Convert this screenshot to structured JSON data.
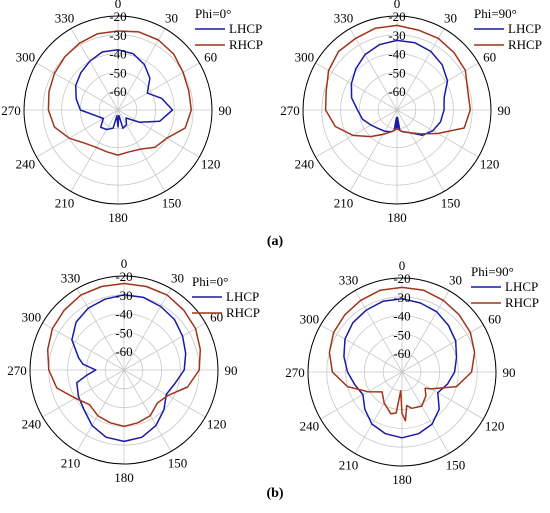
{
  "figure": {
    "label_a": "(a)",
    "label_b": "(b)"
  },
  "colors": {
    "lhcp": "#1a1aa6",
    "rhcp": "#a0341c",
    "grid": "#c8c8c8",
    "axis": "#000000"
  },
  "chart_data": [
    {
      "type": "polar-line",
      "legend_title": "Phi=0°",
      "r_ticks": [
        -20,
        -30,
        -40,
        -50,
        -60
      ],
      "r_range": [
        -70,
        -20
      ],
      "angle_ticks": [
        0,
        30,
        60,
        90,
        120,
        150,
        180,
        210,
        240,
        270,
        300,
        330
      ],
      "legend_position": "top-right",
      "series": [
        {
          "name": "LHCP",
          "angles": [
            0,
            15,
            30,
            45,
            60,
            75,
            90,
            105,
            120,
            135,
            150,
            165,
            170,
            175,
            180,
            185,
            190,
            195,
            210,
            225,
            240,
            255,
            270,
            285,
            300,
            315,
            330,
            345,
            360
          ],
          "values": [
            -38,
            -39,
            -42,
            -46,
            -52,
            -46,
            -41,
            -47,
            -57,
            -64,
            -61,
            -60,
            -67,
            -66,
            -61,
            -65,
            -67,
            -60,
            -58,
            -57,
            -61,
            -58,
            -50,
            -47,
            -44,
            -42,
            -40,
            -38,
            -38
          ]
        },
        {
          "name": "RHCP",
          "angles": [
            0,
            15,
            30,
            45,
            60,
            75,
            90,
            105,
            120,
            135,
            150,
            165,
            180,
            195,
            210,
            225,
            240,
            255,
            270,
            285,
            300,
            315,
            330,
            345,
            360
          ],
          "values": [
            -28,
            -27,
            -27,
            -28,
            -30,
            -31,
            -31,
            -33,
            -40,
            -42,
            -46,
            -47,
            -46,
            -47,
            -47,
            -45,
            -40,
            -35,
            -33,
            -32,
            -31,
            -30,
            -29,
            -28,
            -28
          ]
        }
      ]
    },
    {
      "type": "polar-line",
      "legend_title": "Phi=90°",
      "r_ticks": [
        -20,
        -30,
        -40,
        -50,
        -60
      ],
      "r_range": [
        -70,
        -20
      ],
      "angle_ticks": [
        0,
        30,
        60,
        90,
        120,
        150,
        180,
        210,
        240,
        270,
        300,
        330
      ],
      "legend_position": "top-right",
      "series": [
        {
          "name": "LHCP",
          "angles": [
            0,
            15,
            30,
            45,
            60,
            75,
            90,
            105,
            120,
            135,
            150,
            165,
            172,
            176,
            178,
            180,
            182,
            184,
            188,
            195,
            210,
            225,
            240,
            255,
            270,
            285,
            300,
            315,
            330,
            345,
            360
          ],
          "values": [
            -33,
            -33,
            -34,
            -36,
            -39,
            -44,
            -45,
            -46,
            -48,
            -51,
            -56,
            -58,
            -59,
            -66,
            -60,
            -60,
            -60,
            -66,
            -59,
            -58,
            -57,
            -56,
            -54,
            -51,
            -49,
            -45,
            -42,
            -39,
            -36,
            -34,
            -33
          ]
        },
        {
          "name": "RHCP",
          "angles": [
            0,
            15,
            30,
            45,
            60,
            75,
            90,
            105,
            120,
            135,
            150,
            165,
            180,
            195,
            210,
            225,
            240,
            255,
            270,
            285,
            300,
            315,
            330,
            345,
            360
          ],
          "values": [
            -25,
            -26,
            -26,
            -27,
            -28,
            -31,
            -31,
            -33,
            -45,
            -52,
            -56,
            -58,
            -60,
            -58,
            -55,
            -50,
            -43,
            -36,
            -32,
            -31,
            -28,
            -26,
            -26,
            -25,
            -25
          ]
        }
      ]
    },
    {
      "type": "polar-line",
      "legend_title": "Phi=0°",
      "r_ticks": [
        -20,
        -30,
        -40,
        -50,
        -60
      ],
      "r_range": [
        -70,
        -20
      ],
      "angle_ticks": [
        0,
        30,
        60,
        90,
        120,
        150,
        180,
        210,
        240,
        270,
        300,
        330
      ],
      "legend_position": "top-right",
      "series": [
        {
          "name": "LHCP",
          "angles": [
            0,
            15,
            30,
            45,
            60,
            75,
            90,
            105,
            120,
            135,
            150,
            165,
            180,
            195,
            210,
            225,
            240,
            255,
            262,
            270,
            278,
            285,
            300,
            315,
            330,
            345,
            360
          ],
          "values": [
            -30,
            -30,
            -31,
            -32,
            -34,
            -36,
            -38,
            -42,
            -44,
            -40,
            -36,
            -33,
            -32,
            -33,
            -36,
            -40,
            -42,
            -44,
            -50,
            -55,
            -48,
            -45,
            -38,
            -34,
            -32,
            -31,
            -30
          ]
        },
        {
          "name": "RHCP",
          "angles": [
            0,
            15,
            30,
            45,
            60,
            75,
            90,
            105,
            120,
            135,
            150,
            165,
            180,
            195,
            210,
            225,
            240,
            255,
            270,
            285,
            300,
            315,
            330,
            345,
            360
          ],
          "values": [
            -24,
            -24,
            -24,
            -25,
            -26,
            -28,
            -30,
            -35,
            -43,
            -45,
            -42,
            -41,
            -40,
            -41,
            -42,
            -44,
            -40,
            -33,
            -30,
            -28,
            -26,
            -25,
            -24,
            -24,
            -24
          ]
        }
      ]
    },
    {
      "type": "polar-line",
      "legend_title": "Phi=90°",
      "r_ticks": [
        -20,
        -30,
        -40,
        -50,
        -60
      ],
      "r_range": [
        -70,
        -20
      ],
      "angle_ticks": [
        0,
        30,
        60,
        90,
        120,
        150,
        180,
        210,
        240,
        270,
        300,
        330
      ],
      "legend_position": "top-right",
      "series": [
        {
          "name": "LHCP",
          "angles": [
            0,
            15,
            30,
            45,
            60,
            75,
            90,
            105,
            120,
            135,
            150,
            165,
            180,
            195,
            210,
            225,
            240,
            255,
            270,
            285,
            300,
            315,
            330,
            345,
            360
          ],
          "values": [
            -31,
            -32,
            -33,
            -35,
            -37,
            -40,
            -42,
            -45,
            -48,
            -42,
            -38,
            -36,
            -35,
            -36,
            -38,
            -42,
            -46,
            -44,
            -41,
            -38,
            -35,
            -33,
            -32,
            -31,
            -31
          ]
        },
        {
          "name": "RHCP",
          "angles": [
            0,
            15,
            30,
            45,
            60,
            75,
            90,
            105,
            120,
            125,
            135,
            150,
            165,
            172,
            176,
            180,
            184,
            188,
            195,
            210,
            225,
            240,
            255,
            270,
            285,
            300,
            315,
            330,
            345,
            360
          ],
          "values": [
            -25,
            -25,
            -26,
            -27,
            -28,
            -30,
            -33,
            -40,
            -52,
            -55,
            -52,
            -49,
            -50,
            -52,
            -44,
            -48,
            -60,
            -48,
            -47,
            -51,
            -55,
            -49,
            -40,
            -33,
            -30,
            -28,
            -27,
            -26,
            -25,
            -25
          ]
        }
      ]
    }
  ]
}
